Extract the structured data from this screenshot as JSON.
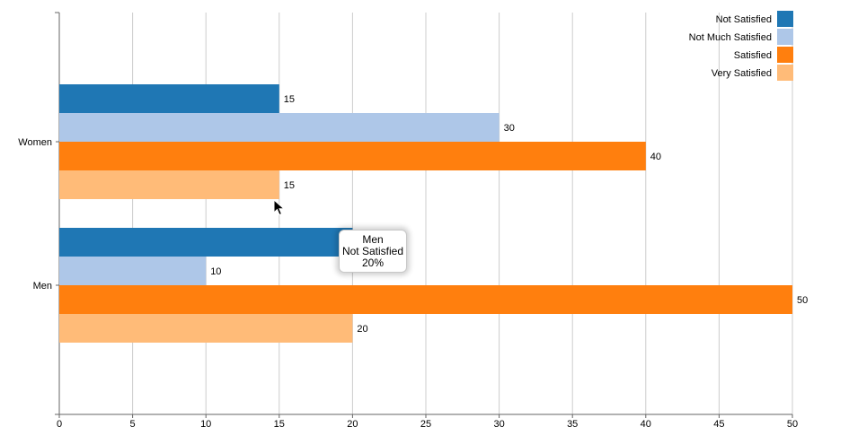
{
  "chart_data": {
    "type": "bar",
    "orientation": "horizontal",
    "categories": [
      "Women",
      "Men"
    ],
    "series": [
      {
        "name": "Not Satisfied",
        "values": [
          15,
          20
        ],
        "color": "#1f77b4"
      },
      {
        "name": "Not Much Satisfied",
        "values": [
          30,
          10
        ],
        "color": "#aec7e8"
      },
      {
        "name": "Satisfied",
        "values": [
          40,
          50
        ],
        "color": "#ff7f0e"
      },
      {
        "name": "Very Satisfied",
        "values": [
          15,
          20
        ],
        "color": "#ffbb78"
      }
    ],
    "xlim": [
      0,
      50
    ],
    "xticks": [
      0,
      5,
      10,
      15,
      20,
      25,
      30,
      35,
      40,
      45,
      50
    ],
    "grid": true,
    "legend": "top-right",
    "show_labels_except": [
      [
        1,
        0
      ]
    ]
  },
  "tooltip": {
    "category": "Men",
    "series": "Not Satisfied",
    "value": "20%"
  }
}
